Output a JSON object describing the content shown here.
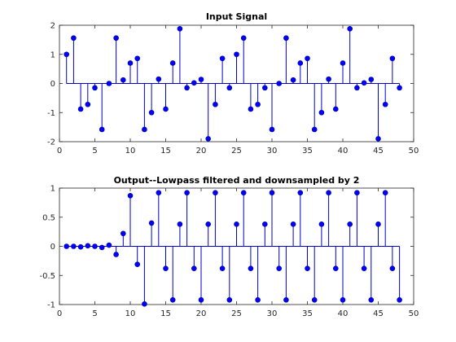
{
  "figure": {
    "background": "#ffffff",
    "stem_color": "#0000ff"
  },
  "chart_data": [
    {
      "type": "stem",
      "title": "Input Signal",
      "xlabel": "",
      "ylabel": "",
      "xlim": [
        0,
        50
      ],
      "ylim": [
        -2,
        2
      ],
      "xticks": [
        0,
        5,
        10,
        15,
        20,
        25,
        30,
        35,
        40,
        45,
        50
      ],
      "yticks": [
        -2,
        -1,
        0,
        1,
        2
      ],
      "xtick_labels": [
        "0",
        "5",
        "10",
        "15",
        "20",
        "25",
        "30",
        "35",
        "40",
        "45",
        "50"
      ],
      "ytick_labels": [
        "-2",
        "-1",
        "0",
        "1",
        "2"
      ],
      "grid": false,
      "x": [
        1,
        2,
        3,
        4,
        5,
        6,
        7,
        8,
        9,
        10,
        11,
        12,
        13,
        14,
        15,
        16,
        17,
        18,
        19,
        20,
        21,
        22,
        23,
        24,
        25,
        26,
        27,
        28,
        29,
        30,
        31,
        32,
        33,
        34,
        35,
        36,
        37,
        38,
        39,
        40,
        41,
        42,
        43,
        44,
        45,
        46,
        47,
        48
      ],
      "values": [
        1.0,
        1.56,
        -0.88,
        -0.72,
        -0.15,
        -1.58,
        0.0,
        1.56,
        0.12,
        0.7,
        0.86,
        -1.58,
        -1.0,
        0.15,
        -0.88,
        0.7,
        1.88,
        -0.15,
        0.02,
        0.14,
        -1.9,
        -0.72,
        0.86,
        -0.15,
        1.0,
        1.56,
        -0.88,
        -0.72,
        -0.15,
        -1.58,
        0.0,
        1.56,
        0.12,
        0.7,
        0.86,
        -1.58,
        -1.0,
        0.15,
        -0.88,
        0.7,
        1.88,
        -0.15,
        0.02,
        0.14,
        -1.9,
        -0.72,
        0.86,
        -0.15
      ]
    },
    {
      "type": "stem",
      "title": "Output--Lowpass filtered and downsampled by 2",
      "xlabel": "",
      "ylabel": "",
      "xlim": [
        0,
        50
      ],
      "ylim": [
        -1,
        1
      ],
      "xticks": [
        0,
        5,
        10,
        15,
        20,
        25,
        30,
        35,
        40,
        45,
        50
      ],
      "yticks": [
        -1,
        -0.5,
        0,
        0.5,
        1
      ],
      "xtick_labels": [
        "0",
        "5",
        "10",
        "15",
        "20",
        "25",
        "30",
        "35",
        "40",
        "45",
        "50"
      ],
      "ytick_labels": [
        "-1",
        "-0.5",
        "0",
        "0.5",
        "1"
      ],
      "grid": false,
      "x": [
        1,
        2,
        3,
        4,
        5,
        6,
        7,
        8,
        9,
        10,
        11,
        12,
        13,
        14,
        15,
        16,
        17,
        18,
        19,
        20,
        21,
        22,
        23,
        24,
        25,
        26,
        27,
        28,
        29,
        30,
        31,
        32,
        33,
        34,
        35,
        36,
        37,
        38,
        39,
        40,
        41,
        42,
        43,
        44,
        45,
        46,
        47,
        48
      ],
      "values": [
        0.0,
        0.0,
        -0.01,
        0.01,
        0.0,
        -0.02,
        0.02,
        -0.14,
        0.22,
        0.87,
        -0.31,
        -0.99,
        0.4,
        0.92,
        -0.38,
        -0.92,
        0.38,
        0.92,
        -0.38,
        -0.92,
        0.38,
        0.92,
        -0.38,
        -0.92,
        0.38,
        0.92,
        -0.38,
        -0.92,
        0.38,
        0.92,
        -0.38,
        -0.92,
        0.38,
        0.92,
        -0.38,
        -0.92,
        0.38,
        0.92,
        -0.38,
        -0.92,
        0.38,
        0.92,
        -0.38,
        -0.92,
        0.38,
        0.92,
        -0.38,
        -0.92
      ]
    }
  ]
}
